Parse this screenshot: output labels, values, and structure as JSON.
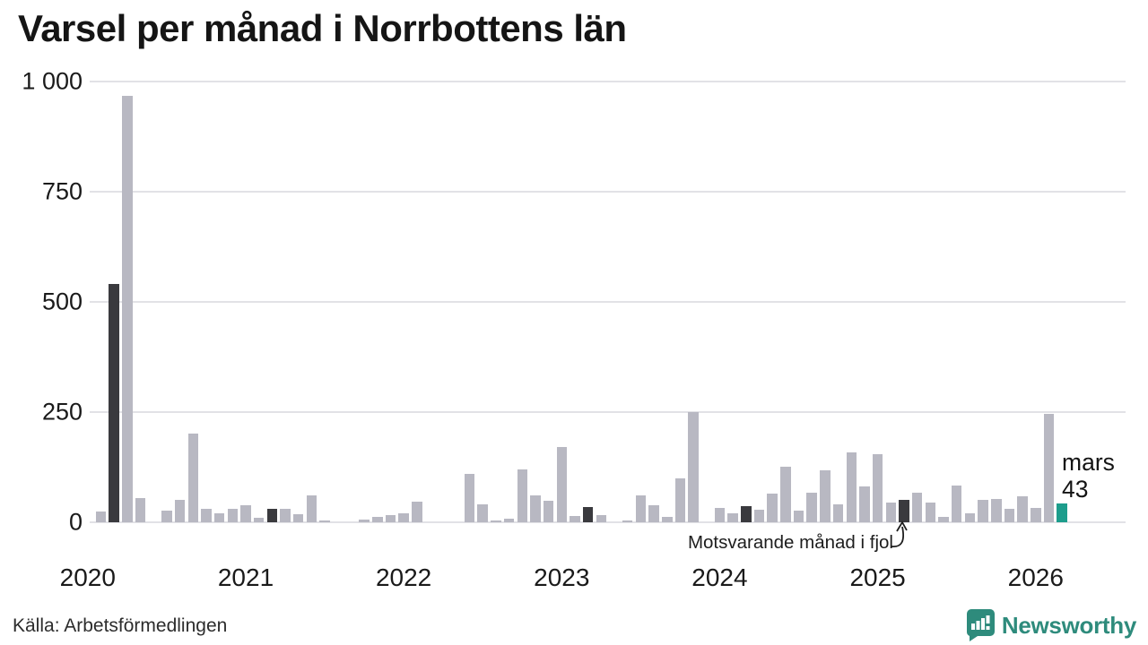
{
  "title": "Varsel per månad i Norrbottens län",
  "source": "Källa: Arbetsförmedlingen",
  "branding": {
    "name": "Newsworthy",
    "logo_color": "#2e8b7c"
  },
  "annotation": {
    "compare_label": "Motsvarande månad i fjol",
    "current_month": "mars",
    "current_value": "43"
  },
  "chart_data": {
    "type": "bar",
    "title": "Varsel per månad i Norrbottens län",
    "xlabel": "",
    "ylabel": "",
    "ylim": [
      0,
      1000
    ],
    "grid": true,
    "yticks": [
      0,
      250,
      500,
      750,
      1000
    ],
    "ytick_labels": [
      "0",
      "250",
      "500",
      "750",
      "1 000"
    ],
    "year_labels": [
      "2020",
      "2021",
      "2022",
      "2023",
      "2024",
      "2025",
      "2026"
    ],
    "months": [
      "2020-01",
      "2020-02",
      "2020-03",
      "2020-04",
      "2020-05",
      "2020-06",
      "2020-07",
      "2020-08",
      "2020-09",
      "2020-10",
      "2020-11",
      "2020-12",
      "2021-01",
      "2021-02",
      "2021-03",
      "2021-04",
      "2021-05",
      "2021-06",
      "2021-07",
      "2021-08",
      "2021-09",
      "2021-10",
      "2021-11",
      "2021-12",
      "2022-01",
      "2022-02",
      "2022-03",
      "2022-04",
      "2022-05",
      "2022-06",
      "2022-07",
      "2022-08",
      "2022-09",
      "2022-10",
      "2022-11",
      "2022-12",
      "2023-01",
      "2023-02",
      "2023-03",
      "2023-04",
      "2023-05",
      "2023-06",
      "2023-07",
      "2023-08",
      "2023-09",
      "2023-10",
      "2023-11",
      "2023-12",
      "2024-01",
      "2024-02",
      "2024-03",
      "2024-04",
      "2024-05",
      "2024-06",
      "2024-07",
      "2024-08",
      "2024-09",
      "2024-10",
      "2024-11",
      "2024-12",
      "2025-01",
      "2025-02",
      "2025-03",
      "2025-04",
      "2025-05",
      "2025-06",
      "2025-07",
      "2025-08",
      "2025-09",
      "2025-10",
      "2025-11",
      "2025-12",
      "2026-01",
      "2026-02",
      "2026-03"
    ],
    "values": [
      0,
      25,
      540,
      967,
      55,
      0,
      26,
      51,
      201,
      31,
      20,
      31,
      38,
      10,
      31,
      31,
      18,
      60,
      5,
      0,
      0,
      6,
      12,
      17,
      21,
      47,
      0,
      0,
      0,
      110,
      41,
      5,
      8,
      120,
      60,
      48,
      170,
      14,
      34,
      17,
      0,
      5,
      60,
      38,
      12,
      100,
      250,
      0,
      32,
      21,
      36,
      29,
      65,
      127,
      26,
      67,
      117,
      40,
      159,
      81,
      154,
      44,
      50,
      68,
      44,
      12,
      83,
      20,
      50,
      53,
      31,
      58,
      33,
      245,
      43
    ],
    "bar_styles": [
      "g",
      "g",
      "d",
      "g",
      "g",
      "g",
      "g",
      "g",
      "g",
      "g",
      "g",
      "g",
      "g",
      "g",
      "d",
      "g",
      "g",
      "g",
      "g",
      "g",
      "g",
      "g",
      "g",
      "g",
      "g",
      "g",
      "d",
      "g",
      "g",
      "g",
      "g",
      "g",
      "g",
      "g",
      "g",
      "g",
      "g",
      "g",
      "d",
      "g",
      "g",
      "g",
      "g",
      "g",
      "g",
      "g",
      "g",
      "g",
      "g",
      "g",
      "d",
      "g",
      "g",
      "g",
      "g",
      "g",
      "g",
      "g",
      "g",
      "g",
      "g",
      "g",
      "d",
      "g",
      "g",
      "g",
      "g",
      "g",
      "g",
      "g",
      "g",
      "g",
      "g",
      "g",
      "t"
    ],
    "colors": {
      "g": "#b8b8c2",
      "d": "#3a3a3e",
      "t": "#1d9d8c"
    },
    "style_legend": {
      "g": "ordinary month",
      "d": "highlighted: same month in previous years (Motsvarande månad i fjol)",
      "t": "current month (mars 2026 = 43)"
    },
    "legend_position": "none"
  }
}
